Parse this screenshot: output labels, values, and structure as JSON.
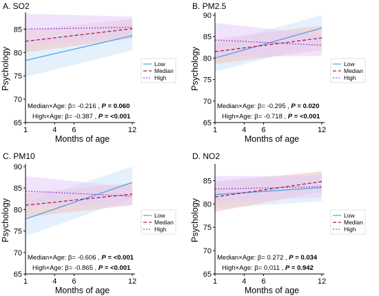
{
  "figure": {
    "ylabel": "Psychology",
    "xlabel": "Months of age",
    "legend_labels": [
      "Low",
      "Median",
      "High"
    ]
  },
  "chart_data": [
    {
      "type": "line",
      "title": "A. SO2",
      "xlabel": "Months of age",
      "ylabel": "Psychology",
      "xlim": [
        1,
        12
      ],
      "ylim": [
        65,
        88
      ],
      "xticks": [
        1,
        4,
        6,
        12
      ],
      "yticks": [
        65,
        70,
        75,
        80,
        85
      ],
      "legend": "right",
      "grid": false,
      "series": [
        {
          "name": "Low",
          "color": "#4da3e0",
          "dash": "solid",
          "band_color": "#cde6fb",
          "x": [
            1,
            12
          ],
          "y": [
            78.3,
            83.6
          ],
          "lower": [
            74.8,
            80.4
          ],
          "upper": [
            81.8,
            86.8
          ]
        },
        {
          "name": "Median",
          "color": "#b0193b",
          "dash": "dashed",
          "band_color": "#f3c3c0",
          "x": [
            1,
            12
          ],
          "y": [
            82.4,
            85.1
          ],
          "lower": [
            80.0,
            83.0
          ],
          "upper": [
            84.8,
            87.2
          ]
        },
        {
          "name": "High",
          "color": "#9a42e8",
          "dash": "dotted",
          "band_color": "#e3cdfa",
          "x": [
            1,
            12
          ],
          "y": [
            85.0,
            85.4
          ],
          "lower": [
            81.7,
            83.1
          ],
          "upper": [
            88.3,
            87.7
          ]
        }
      ],
      "annotations": [
        {
          "label": "Median×Age: β= -0.216 ,",
          "p_label": "P",
          "p_value": "= 0.060"
        },
        {
          "label": "High×Age: β= -0.387 ,",
          "p_label": "P",
          "p_value": "= <0.001"
        }
      ]
    },
    {
      "type": "line",
      "title": "B. PM2.5",
      "xlabel": "Months of age",
      "ylabel": "Psychology",
      "xlim": [
        1,
        12
      ],
      "ylim": [
        65,
        90
      ],
      "xticks": [
        1,
        4,
        6,
        12
      ],
      "yticks": [
        65,
        70,
        75,
        80,
        85,
        90
      ],
      "legend": "right",
      "grid": false,
      "series": [
        {
          "name": "Low",
          "color": "#4da3e0",
          "dash": "solid",
          "band_color": "#cde6fb",
          "x": [
            1,
            12
          ],
          "y": [
            80.0,
            87.0
          ],
          "lower": [
            76.8,
            83.4
          ],
          "upper": [
            83.2,
            90.0
          ]
        },
        {
          "name": "Median",
          "color": "#b0193b",
          "dash": "dashed",
          "band_color": "#f3c3c0",
          "x": [
            1,
            12
          ],
          "y": [
            81.5,
            84.7
          ],
          "lower": [
            78.6,
            81.8
          ],
          "upper": [
            84.4,
            87.6
          ]
        },
        {
          "name": "High",
          "color": "#9a42e8",
          "dash": "dotted",
          "band_color": "#e3cdfa",
          "x": [
            1,
            12
          ],
          "y": [
            84.2,
            83.0
          ],
          "lower": [
            80.2,
            80.5
          ],
          "upper": [
            88.2,
            85.5
          ]
        }
      ],
      "annotations": [
        {
          "label": "Median×Age: β= -0.295 ,",
          "p_label": "P",
          "p_value": "= 0.020"
        },
        {
          "label": "High×Age: β= -0.718 ,",
          "p_label": "P",
          "p_value": "= <0.001"
        }
      ]
    },
    {
      "type": "line",
      "title": "C. PM10",
      "xlabel": "Months of age",
      "ylabel": "Psychology",
      "xlim": [
        1,
        12
      ],
      "ylim": [
        65,
        90
      ],
      "xticks": [
        1,
        4,
        6,
        12
      ],
      "yticks": [
        65,
        70,
        75,
        80,
        85,
        90
      ],
      "legend": "right",
      "grid": false,
      "series": [
        {
          "name": "Low",
          "color": "#4da3e0",
          "dash": "solid",
          "band_color": "#cde6fb",
          "x": [
            1,
            12
          ],
          "y": [
            77.8,
            86.3
          ],
          "lower": [
            73.8,
            82.6
          ],
          "upper": [
            81.8,
            90.0
          ]
        },
        {
          "name": "Median",
          "color": "#b0193b",
          "dash": "dashed",
          "band_color": "#f3c3c0",
          "x": [
            1,
            12
          ],
          "y": [
            81.0,
            83.6
          ],
          "lower": [
            78.2,
            81.0
          ],
          "upper": [
            83.8,
            86.2
          ]
        },
        {
          "name": "High",
          "color": "#9a42e8",
          "dash": "dotted",
          "band_color": "#e3cdfa",
          "x": [
            1,
            12
          ],
          "y": [
            84.3,
            83.1
          ],
          "lower": [
            80.8,
            81.0
          ],
          "upper": [
            87.8,
            85.2
          ]
        }
      ],
      "annotations": [
        {
          "label": "Median×Age: β= -0.606 ,",
          "p_label": "P",
          "p_value": "= <0.001"
        },
        {
          "label": "High×Age: β= -0.865 ,",
          "p_label": "P",
          "p_value": "= <0.001"
        }
      ]
    },
    {
      "type": "line",
      "title": "D. NO2",
      "xlabel": "Months of age",
      "ylabel": "Psychology",
      "xlim": [
        1,
        12
      ],
      "ylim": [
        65,
        88
      ],
      "xticks": [
        1,
        4,
        6,
        12
      ],
      "yticks": [
        65,
        70,
        75,
        80,
        85
      ],
      "legend": "right",
      "grid": false,
      "series": [
        {
          "name": "Low",
          "color": "#4da3e0",
          "dash": "solid",
          "band_color": "#cde6fb",
          "x": [
            1,
            12
          ],
          "y": [
            82.0,
            83.5
          ],
          "lower": [
            79.0,
            80.6
          ],
          "upper": [
            85.0,
            86.4
          ]
        },
        {
          "name": "Median",
          "color": "#b0193b",
          "dash": "dashed",
          "band_color": "#f3c3c0",
          "x": [
            1,
            12
          ],
          "y": [
            81.5,
            84.8
          ],
          "lower": [
            78.3,
            82.6
          ],
          "upper": [
            84.7,
            87.0
          ]
        },
        {
          "name": "High",
          "color": "#9a42e8",
          "dash": "dotted",
          "band_color": "#e3cdfa",
          "x": [
            1,
            12
          ],
          "y": [
            83.2,
            83.7
          ],
          "lower": [
            80.4,
            81.4
          ],
          "upper": [
            86.0,
            86.0
          ]
        }
      ],
      "annotations": [
        {
          "label": "Median×Age: β= 0.272 ,",
          "p_label": "P",
          "p_value": "= 0.034"
        },
        {
          "label": "High×Age: β= 0.011 ,",
          "p_label": "P",
          "p_value": "= 0.942"
        }
      ]
    }
  ]
}
